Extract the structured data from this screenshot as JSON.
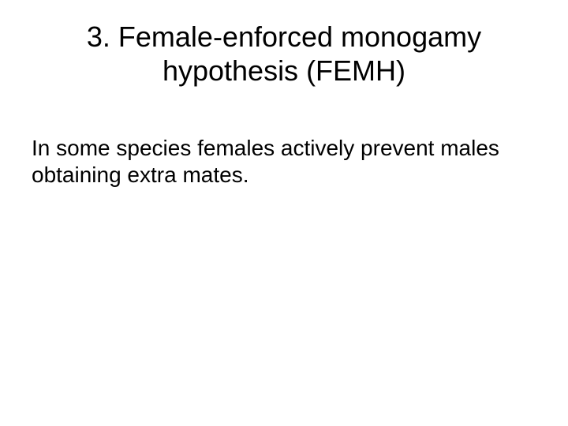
{
  "slide": {
    "title": "3. Female-enforced monogamy hypothesis (FEMH)",
    "body": "In some species females actively prevent males obtaining extra mates."
  },
  "style": {
    "background_color": "#ffffff",
    "text_color": "#000000",
    "title_fontsize": 36,
    "body_fontsize": 28,
    "font_family": "Arial"
  }
}
